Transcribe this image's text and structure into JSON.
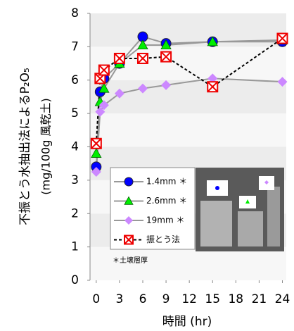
{
  "chart_data": {
    "type": "line",
    "y_label": "不振とう水抽出法によるP₂O₅",
    "y_label_sub": "(mg/100g 風乾土)",
    "x_label": "時間 (hr)",
    "note": "＊土壌層厚",
    "x": [
      0,
      0.5,
      1,
      3,
      6,
      9,
      15,
      24
    ],
    "series": [
      {
        "name": "1.4mm ＊",
        "color": "#0000ff",
        "line_color": "#999999",
        "marker": "circle",
        "values": [
          3.4,
          5.65,
          6.05,
          6.5,
          7.3,
          7.1,
          7.15,
          7.15
        ]
      },
      {
        "name": "2.6mm ＊",
        "color": "#00ee00",
        "line_color": "#999999",
        "marker": "triangle",
        "values": [
          3.8,
          5.35,
          5.75,
          6.5,
          7.05,
          7.05,
          7.15,
          7.2
        ]
      },
      {
        "name": "19mm ＊",
        "color": "#cc88ff",
        "line_color": "#999999",
        "marker": "diamond",
        "values": [
          3.25,
          5.05,
          5.25,
          5.6,
          5.75,
          5.85,
          6.05,
          5.95
        ]
      },
      {
        "name": "振とう法",
        "color": "#ee0000",
        "line_color": "#000000",
        "dashed": true,
        "marker": "xsquare",
        "values": [
          4.1,
          6.05,
          6.3,
          6.65,
          6.65,
          6.7,
          5.8,
          7.25
        ]
      }
    ],
    "xlim": [
      -0.8,
      24.5
    ],
    "ylim": [
      0,
      8
    ],
    "xticks": [
      0,
      3,
      6,
      9,
      12,
      15,
      18,
      21,
      24
    ],
    "yticks": [
      0,
      1,
      2,
      3,
      4,
      5,
      6,
      7,
      8
    ],
    "grid": "bands"
  }
}
